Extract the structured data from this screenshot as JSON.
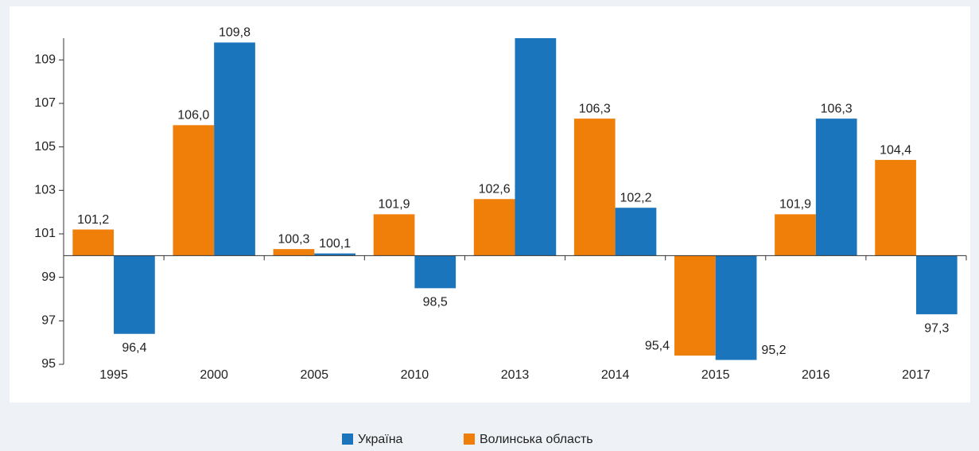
{
  "chart_data": {
    "type": "bar",
    "categories": [
      "1995",
      "2000",
      "2005",
      "2010",
      "2013",
      "2014",
      "2015",
      "2016",
      "2017"
    ],
    "series": [
      {
        "name": "Волинська область",
        "color": "#f07f09",
        "values": [
          101.2,
          106.0,
          100.3,
          101.9,
          102.6,
          106.3,
          95.4,
          101.9,
          104.4
        ],
        "value_labels": [
          "101,2",
          "106,0",
          "100,3",
          "101,9",
          "102,6",
          "106,3",
          "95,4",
          "101,9",
          "104,4"
        ]
      },
      {
        "name": "Україна",
        "color": "#1a75bc",
        "values": [
          96.4,
          109.8,
          100.1,
          98.5,
          110.0,
          102.2,
          95.2,
          106.3,
          97.3
        ],
        "value_labels": [
          "96,4",
          "109,8",
          "100,1",
          "98,5",
          null,
          "102,2",
          "95,2",
          "106,3",
          "97,3"
        ]
      }
    ],
    "baseline": 100,
    "ylim": [
      95,
      110
    ],
    "yticks": [
      95,
      97,
      99,
      101,
      103,
      105,
      107,
      109
    ],
    "grid": false,
    "legend": "bottom"
  }
}
